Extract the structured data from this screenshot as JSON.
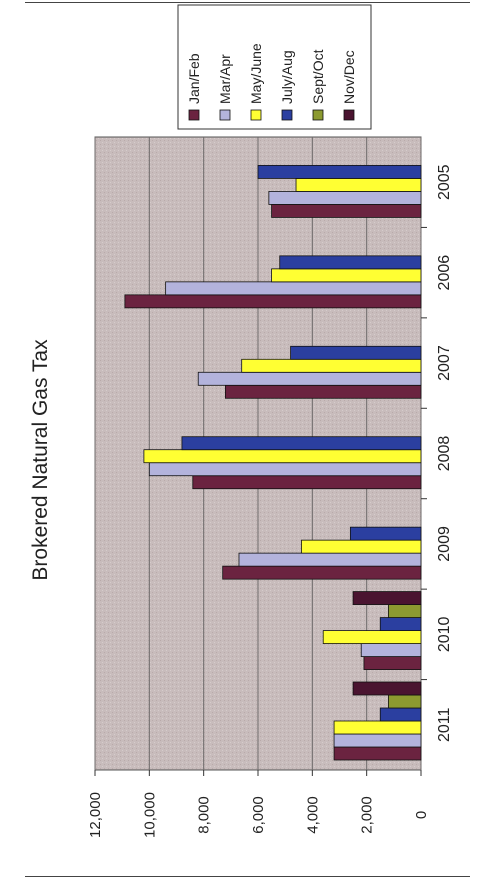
{
  "chart_data": {
    "type": "bar",
    "orientation": "rotated-90-ccw",
    "title": "Brokered Natural Gas Tax",
    "xlabel": "",
    "ylabel": "",
    "categories": [
      "2005",
      "2006",
      "2007",
      "2008",
      "2009",
      "2010",
      "2011"
    ],
    "ylim": [
      0,
      12000
    ],
    "yticks": [
      "0",
      "2,000",
      "4,000",
      "6,000",
      "8,000",
      "10,000",
      "12,000"
    ],
    "grid": true,
    "legend_position": "top",
    "series": [
      {
        "name": "Jan/Feb",
        "color": "#6b2340",
        "values": [
          5500,
          10900,
          7200,
          8400,
          7300,
          2100,
          3200
        ]
      },
      {
        "name": "Mar/Apr",
        "color": "#b3b3dc",
        "values": [
          5600,
          9400,
          8200,
          10000,
          6700,
          2200,
          3200
        ]
      },
      {
        "name": "May/June",
        "color": "#ffff33",
        "values": [
          4600,
          5500,
          6600,
          10200,
          4400,
          3600,
          3200
        ]
      },
      {
        "name": "July/Aug",
        "color": "#2b3fa0",
        "values": [
          6000,
          5200,
          4800,
          8800,
          2600,
          1500,
          1500
        ]
      },
      {
        "name": "Sept/Oct",
        "color": "#8c9a30",
        "values": [
          null,
          null,
          null,
          null,
          null,
          1200,
          1200
        ]
      },
      {
        "name": "Nov/Dec",
        "color": "#4a1430",
        "values": [
          null,
          null,
          null,
          null,
          null,
          2500,
          2500
        ]
      }
    ]
  }
}
